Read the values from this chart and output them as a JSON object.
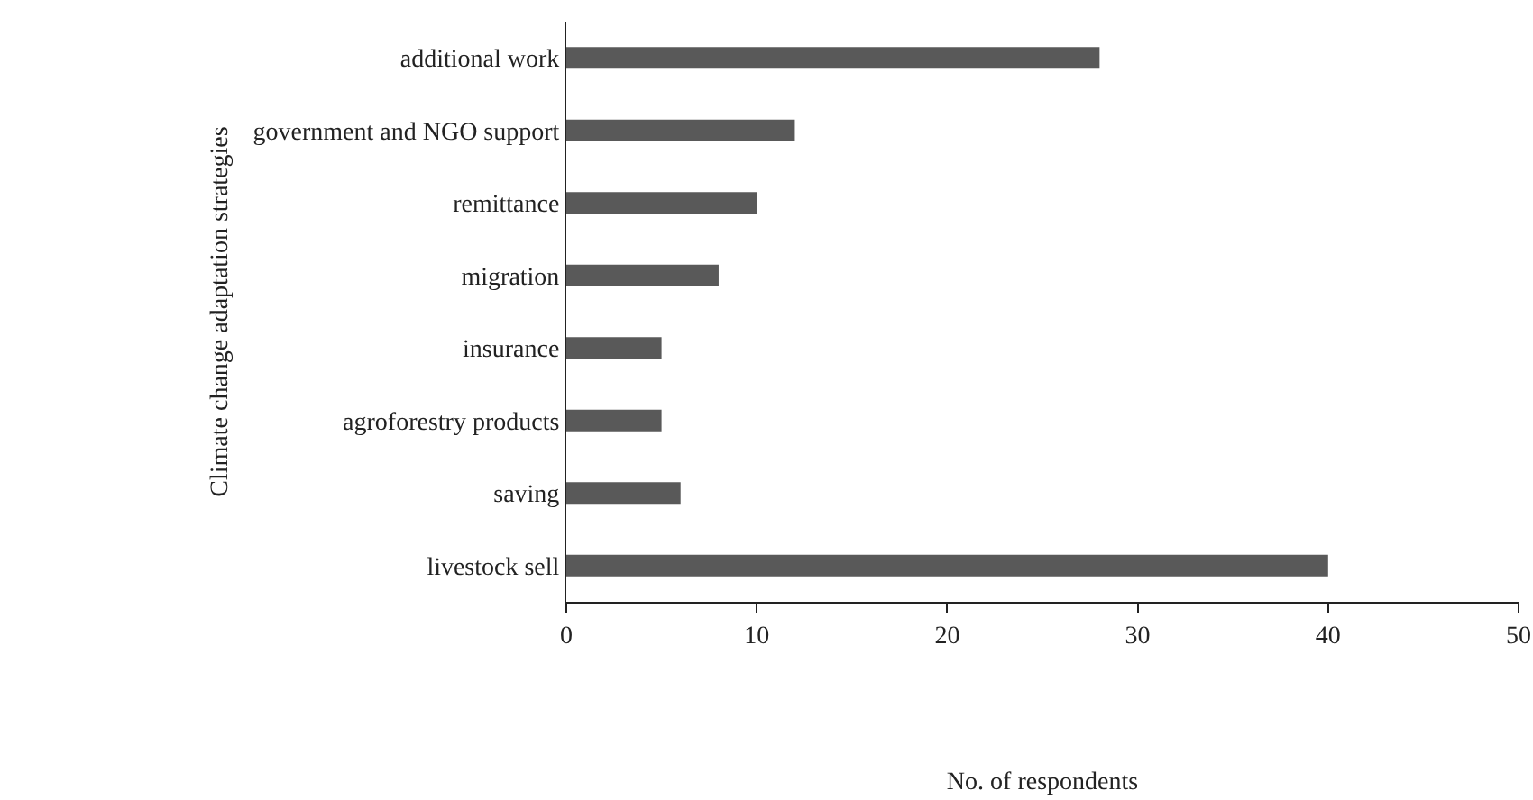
{
  "chart_data": {
    "type": "bar",
    "orientation": "horizontal",
    "categories": [
      "additional work",
      "government and NGO support",
      "remittance",
      "migration",
      "insurance",
      "agroforestry products",
      "saving",
      "livestock sell"
    ],
    "values": [
      28,
      12,
      10,
      8,
      5,
      5,
      6,
      40
    ],
    "color": "#595959",
    "xlim": [
      0,
      50
    ],
    "xticks": [
      0,
      10,
      20,
      30,
      40,
      50
    ],
    "xlabel": "No. of respondents",
    "ylabel": "Climate change adaptation strategies"
  }
}
